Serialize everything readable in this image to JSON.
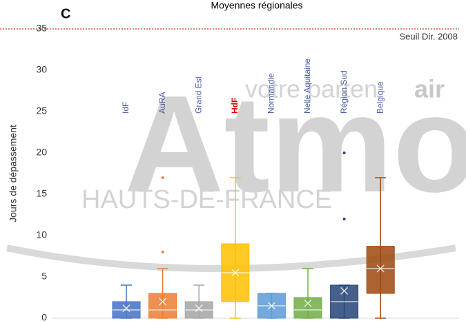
{
  "chart_data": {
    "type": "box",
    "panel": "C",
    "title": "Moyennes régionales",
    "y_label": "Jours de dépassement",
    "watermark": {
      "main": "Atmo",
      "slogan_start": "votre parten",
      "slogan_end": "air",
      "region": "HAUTS-DE-FRANCE"
    },
    "threshold": {
      "value": 35,
      "label": "Seuil Dir. 2008",
      "color": "#c00000"
    },
    "ylim": [
      0,
      35
    ],
    "yticks": [
      0,
      5,
      10,
      15,
      20,
      25,
      30,
      35
    ],
    "categories": [
      "IdF",
      "AuRA",
      "Grand Est",
      "HdF",
      "Normandie",
      "Nelle Aquitaine",
      "Région Sud",
      "Belgique"
    ],
    "label_colors": [
      "#4a5ea8",
      "#4a5ea8",
      "#4a5ea8",
      "#e00000",
      "#4a5ea8",
      "#4a5ea8",
      "#4a5ea8",
      "#4a5ea8"
    ],
    "colors": [
      "#4472c4",
      "#ed7d31",
      "#a5a5a5",
      "#ffc000",
      "#5b9bd5",
      "#70ad47",
      "#264478",
      "#9e480e"
    ],
    "boxes": [
      {
        "min": 0,
        "q1": 0,
        "median": 1,
        "q3": 2,
        "max": 4,
        "mean": 1.2,
        "outliers": []
      },
      {
        "min": 0,
        "q1": 0,
        "median": 1,
        "q3": 3,
        "max": 6,
        "mean": 2,
        "outliers": [
          8,
          17
        ]
      },
      {
        "min": 0,
        "q1": 0,
        "median": 1,
        "q3": 2,
        "max": 4,
        "mean": 1.2,
        "outliers": []
      },
      {
        "min": 0,
        "q1": 2,
        "median": 5.5,
        "q3": 9,
        "max": 17,
        "mean": 5.5,
        "outliers": []
      },
      {
        "min": 0,
        "q1": 0,
        "median": 1.5,
        "q3": 3,
        "max": 3,
        "mean": 1.5,
        "outliers": []
      },
      {
        "min": 0,
        "q1": 0,
        "median": 1,
        "q3": 2.5,
        "max": 6,
        "mean": 1.8,
        "outliers": []
      },
      {
        "min": 0,
        "q1": 0,
        "median": 2,
        "q3": 4,
        "max": 4,
        "mean": 3.3,
        "outliers": [
          12,
          20
        ]
      },
      {
        "min": 0,
        "q1": 3,
        "median": 6,
        "q3": 8.7,
        "max": 17,
        "mean": 6,
        "outliers": []
      }
    ]
  }
}
